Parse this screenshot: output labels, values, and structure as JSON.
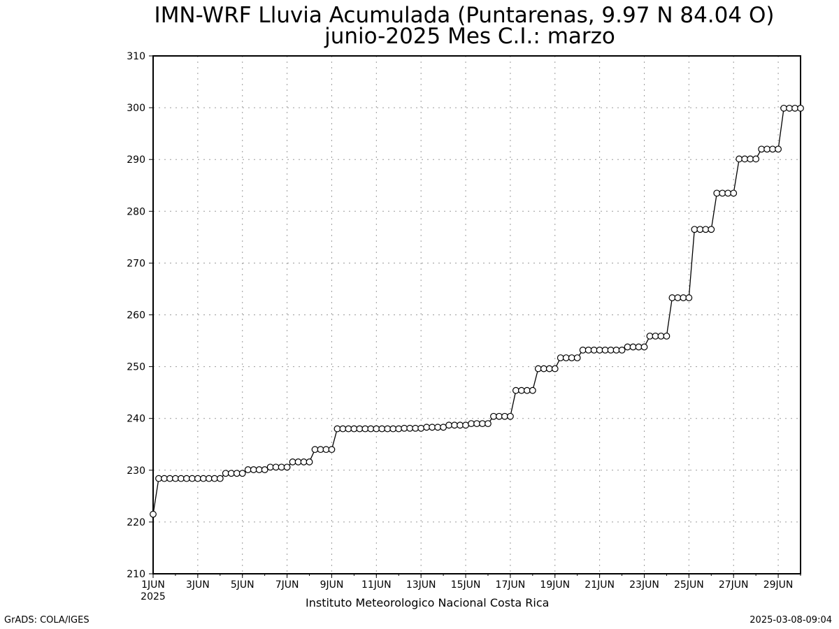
{
  "chart_data": {
    "type": "line",
    "title": "IMN-WRF  Lluvia Acumulada  (Puntarenas, 9.97  N 84.04  O)",
    "subtitle": "junio-2025 Mes C.I.: marzo",
    "x_tick_labels": [
      "1JUN",
      "3JUN",
      "5JUN",
      "7JUN",
      "9JUN",
      "11JUN",
      "13JUN",
      "15JUN",
      "17JUN",
      "19JUN",
      "21JUN",
      "23JUN",
      "25JUN",
      "27JUN",
      "29JUN"
    ],
    "x_year_label": "2025",
    "y_tick_labels": [
      "210",
      "220",
      "230",
      "240",
      "250",
      "260",
      "270",
      "280",
      "290",
      "300",
      "310"
    ],
    "ylim": [
      210,
      310
    ],
    "x_range_days": [
      1,
      30
    ],
    "grid": true,
    "marker": "open-circle",
    "line_color": "#000000",
    "series": [
      {
        "x": [
          1,
          1.25,
          1.5,
          1.75,
          2,
          2.25,
          2.5,
          2.75,
          3,
          3.25,
          3.5,
          3.75,
          4,
          4.25,
          4.5,
          4.75,
          5,
          5.25,
          5.5,
          5.75,
          6,
          6.25,
          6.5,
          6.75,
          7,
          7.25,
          7.5,
          7.75,
          8,
          8.25,
          8.5,
          8.75,
          9,
          9.25,
          9.5,
          9.75,
          10,
          10.25,
          10.5,
          10.75,
          11,
          11.25,
          11.5,
          11.75,
          12,
          12.25,
          12.5,
          12.75,
          13,
          13.25,
          13.5,
          13.75,
          14,
          14.25,
          14.5,
          14.75,
          15,
          15.25,
          15.5,
          15.75,
          16,
          16.25,
          16.5,
          16.75,
          17,
          17.25,
          17.5,
          17.75,
          18,
          18.25,
          18.5,
          18.75,
          19,
          19.25,
          19.5,
          19.75,
          20,
          20.25,
          20.5,
          20.75,
          21,
          21.25,
          21.5,
          21.75,
          22,
          22.25,
          22.5,
          22.75,
          23,
          23.25,
          23.5,
          23.75,
          24,
          24.25,
          24.5,
          24.75,
          25,
          25.25,
          25.5,
          25.75,
          26,
          26.25,
          26.5,
          26.75,
          27,
          27.25,
          27.5,
          27.75,
          28,
          28.25,
          28.5,
          28.75,
          29,
          29.25,
          29.5,
          29.75,
          30
        ],
        "values": [
          221.5,
          228.4,
          228.4,
          228.4,
          228.4,
          228.4,
          228.4,
          228.4,
          228.4,
          228.4,
          228.4,
          228.4,
          228.4,
          229.4,
          229.4,
          229.4,
          229.4,
          230.1,
          230.1,
          230.1,
          230.1,
          230.6,
          230.6,
          230.6,
          230.6,
          231.6,
          231.6,
          231.6,
          231.6,
          234.0,
          234.0,
          234.0,
          234.0,
          238.0,
          238.0,
          238.0,
          238.0,
          238.0,
          238.0,
          238.0,
          238.0,
          238.0,
          238.0,
          238.0,
          238.0,
          238.1,
          238.1,
          238.1,
          238.1,
          238.3,
          238.3,
          238.3,
          238.3,
          238.7,
          238.7,
          238.7,
          238.7,
          239.0,
          239.0,
          239.0,
          239.0,
          240.4,
          240.4,
          240.4,
          240.4,
          245.4,
          245.4,
          245.4,
          245.4,
          249.6,
          249.6,
          249.6,
          249.6,
          251.7,
          251.7,
          251.7,
          251.7,
          253.2,
          253.2,
          253.2,
          253.2,
          253.2,
          253.2,
          253.2,
          253.2,
          253.8,
          253.8,
          253.8,
          253.8,
          255.9,
          255.9,
          255.9,
          255.9,
          263.3,
          263.3,
          263.3,
          263.3,
          276.5,
          276.5,
          276.5,
          276.5,
          283.5,
          283.5,
          283.5,
          283.5,
          290.1,
          290.1,
          290.1,
          290.1,
          292.0,
          292.0,
          292.0,
          292.0,
          299.9,
          299.9,
          299.9,
          299.9
        ]
      }
    ]
  },
  "footer": {
    "institution": "Instituto Meteorologico Nacional Costa Rica",
    "left_credit": "GrADS: COLA/IGES",
    "timestamp": "2025-03-08-09:04"
  }
}
